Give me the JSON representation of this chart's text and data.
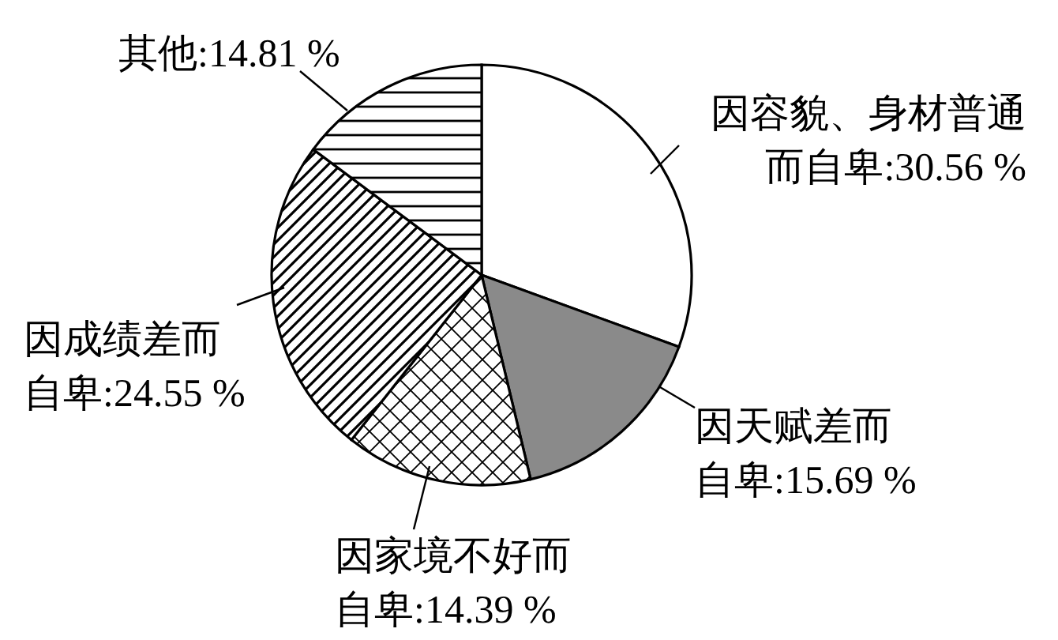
{
  "chart_data": {
    "type": "pie",
    "categories": [
      "因容貌、身材普通而自卑",
      "因天赋差而自卑",
      "因家境不好而自卑",
      "因成绩差而自卑",
      "其他"
    ],
    "values": [
      30.56,
      15.69,
      14.39,
      24.55,
      14.81
    ],
    "colors": [
      "#ffffff",
      "#8a8a8a",
      "#ffffff",
      "#ffffff",
      "#ffffff"
    ],
    "value_labels": [
      ":30.56 %",
      ":15.69 %",
      ":14.39 %",
      ":24.55 %",
      ":14.81 %"
    ]
  }
}
